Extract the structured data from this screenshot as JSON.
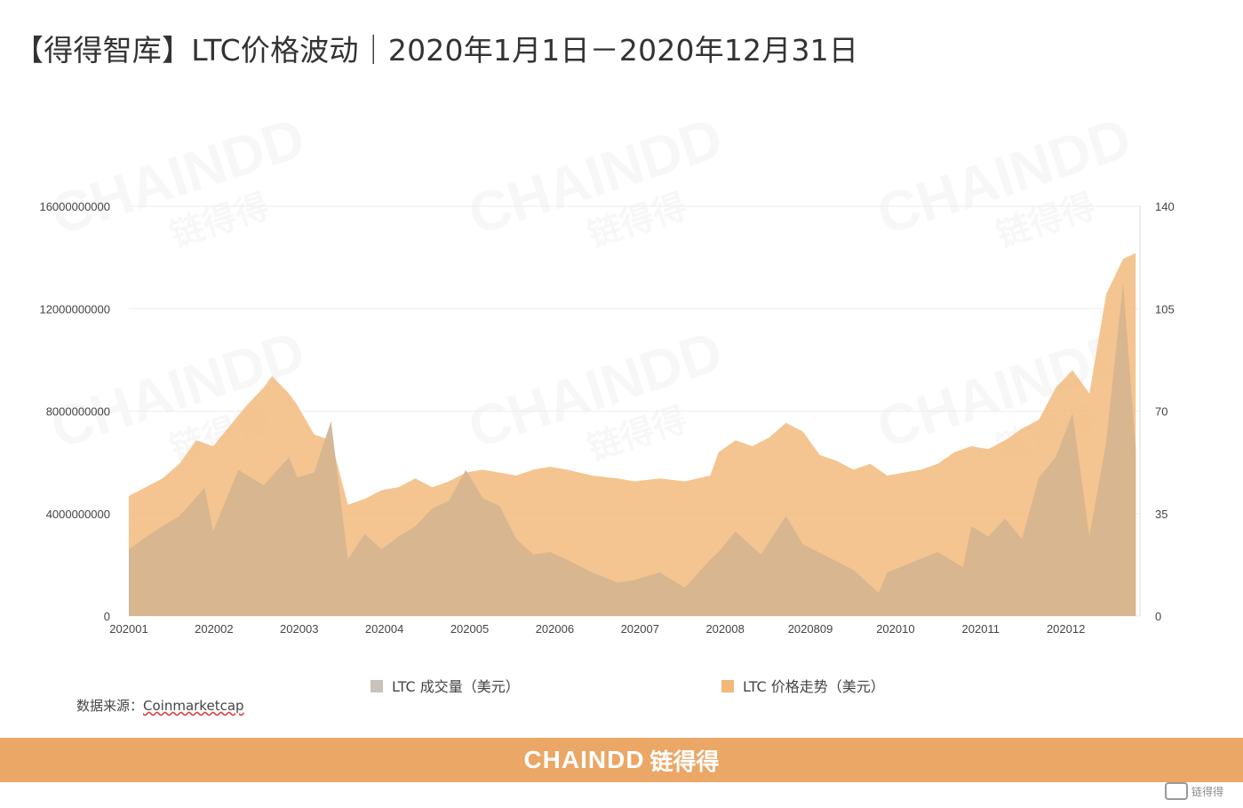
{
  "title": "【得得智库】LTC价格波动｜2020年1月1日－2020年12月31日",
  "source": {
    "label": "数据来源：",
    "link": "Coinmarketcap"
  },
  "footer": {
    "brand": "CHAINDD",
    "brand_cn": "链得得"
  },
  "watermark": {
    "en": "CHAINDD",
    "cn": "链得得"
  },
  "colors": {
    "volume": "#c9c2bb",
    "price": "#f2b877",
    "overlap": "#d2b493",
    "footer": "#eba766",
    "grid": "#eeeeee"
  },
  "chart_data": {
    "type": "area",
    "title": "",
    "x_tick_labels": [
      "202001",
      "202002",
      "202003",
      "202004",
      "202005",
      "202006",
      "202007",
      "202008",
      "2020809",
      "202010",
      "202011",
      "202012"
    ],
    "y_left": {
      "ticks": [
        "0",
        "4000000000",
        "8000000000",
        "12000000000",
        "16000000000"
      ],
      "range": [
        0,
        16000000000
      ]
    },
    "y_right": {
      "ticks": [
        "0",
        "35",
        "70",
        "105",
        "140"
      ],
      "range": [
        0,
        140
      ]
    },
    "legend": {
      "position": "bottom",
      "items": [
        "LTC 成交量（美元）",
        "LTC 价格走势（美元）"
      ]
    },
    "series": [
      {
        "name": "LTC 成交量（美元）",
        "axis": "left",
        "months": [
          1,
          1.3,
          1.6,
          1.9,
          2,
          2.3,
          2.6,
          2.9,
          3,
          3.2,
          3.4,
          3.6,
          3.8,
          4,
          4.2,
          4.4,
          4.6,
          4.8,
          5,
          5.2,
          5.4,
          5.6,
          5.8,
          6,
          6.2,
          6.5,
          6.8,
          7,
          7.3,
          7.6,
          7.9,
          8,
          8.2,
          8.5,
          8.8,
          9,
          9.3,
          9.6,
          9.9,
          10,
          10.3,
          10.6,
          10.9,
          11,
          11.2,
          11.4,
          11.6,
          11.8,
          12,
          12.2,
          12.4,
          12.6,
          12.8,
          12.95
        ],
        "values": [
          2600000000,
          3300000000,
          3900000000,
          5000000000,
          3300000000,
          5700000000,
          5100000000,
          6200000000,
          5400000000,
          5600000000,
          7600000000,
          2200000000,
          3200000000,
          2600000000,
          3100000000,
          3500000000,
          4200000000,
          4500000000,
          5700000000,
          4600000000,
          4300000000,
          3000000000,
          2400000000,
          2500000000,
          2200000000,
          1700000000,
          1300000000,
          1400000000,
          1700000000,
          1100000000,
          2200000000,
          2500000000,
          3300000000,
          2400000000,
          3900000000,
          2800000000,
          2300000000,
          1800000000,
          900000000,
          1700000000,
          2100000000,
          2500000000,
          1900000000,
          3500000000,
          3100000000,
          3800000000,
          3000000000,
          5400000000,
          6200000000,
          7900000000,
          3100000000,
          6800000000,
          13000000000,
          6500000000
        ]
      },
      {
        "name": "LTC 价格走势（美元）",
        "axis": "right",
        "months": [
          1,
          1.2,
          1.4,
          1.6,
          1.8,
          2,
          2.2,
          2.4,
          2.6,
          2.7,
          2.9,
          3,
          3.2,
          3.4,
          3.6,
          3.8,
          4,
          4.2,
          4.4,
          4.6,
          4.8,
          5,
          5.2,
          5.4,
          5.6,
          5.8,
          6,
          6.2,
          6.5,
          6.8,
          7,
          7.3,
          7.6,
          7.9,
          8,
          8.2,
          8.4,
          8.6,
          8.8,
          9,
          9.2,
          9.4,
          9.6,
          9.8,
          10,
          10.2,
          10.4,
          10.6,
          10.8,
          11,
          11.2,
          11.4,
          11.6,
          11.8,
          12,
          12.2,
          12.4,
          12.6,
          12.8,
          12.95
        ],
        "values": [
          41,
          44,
          47,
          52,
          60,
          58,
          65,
          72,
          78,
          82,
          76,
          72,
          62,
          60,
          38,
          40,
          43,
          44,
          47,
          44,
          46,
          49,
          50,
          49,
          48,
          50,
          51,
          50,
          48,
          47,
          46,
          47,
          46,
          48,
          56,
          60,
          58,
          61,
          66,
          63,
          55,
          53,
          50,
          52,
          48,
          49,
          50,
          52,
          56,
          58,
          57,
          60,
          64,
          67,
          78,
          84,
          76,
          110,
          122,
          124
        ]
      }
    ]
  }
}
